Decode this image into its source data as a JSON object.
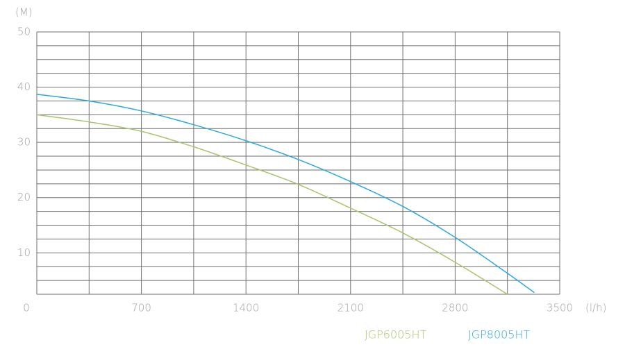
{
  "chart_data": {
    "type": "line",
    "y_unit": "(M)",
    "x_unit": "(l/h)",
    "xlim": [
      0,
      3500
    ],
    "xticks": [
      0,
      700,
      1400,
      2100,
      2800,
      3500
    ],
    "x_minor_ticks": [
      350,
      1050,
      1750,
      2450,
      3150
    ],
    "ylim": [
      2.5,
      50
    ],
    "yticks": [
      10,
      20,
      30,
      40,
      50
    ],
    "y_minor_ticks": [
      5,
      7.5,
      12.5,
      15,
      17.5,
      22.5,
      25,
      27.5,
      32.5,
      35,
      37.5,
      42.5,
      45,
      47.5
    ],
    "grid": true,
    "series": [
      {
        "name": "JGP6005HT",
        "color": "#a9c46c",
        "x": [
          0,
          350,
          700,
          1050,
          1400,
          1750,
          2100,
          2450,
          2800,
          3150
        ],
        "values": [
          35,
          33.7,
          32,
          29.2,
          25.9,
          22.4,
          18.1,
          13.6,
          8.3,
          2.5
        ]
      },
      {
        "name": "JGP8005HT",
        "color": "#2aa9e0",
        "x": [
          0,
          350,
          700,
          1050,
          1400,
          1750,
          2100,
          2450,
          2800,
          3150,
          3330
        ],
        "values": [
          38.7,
          37.5,
          35.7,
          33.2,
          30.3,
          26.9,
          22.9,
          18.4,
          12.8,
          6.3,
          2.8
        ]
      }
    ]
  }
}
